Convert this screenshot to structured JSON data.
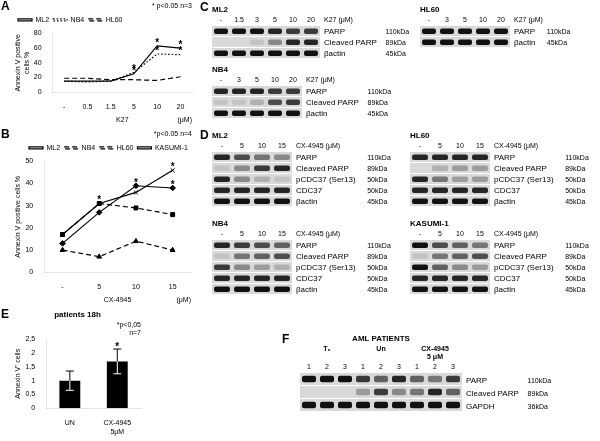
{
  "chart_data": [
    {
      "type": "line",
      "panel_label": "A",
      "annotation": "* p<0.05 n=3",
      "x_label": "K27",
      "x_unit": "(μM)",
      "y_label": "Annexin V positive cells %",
      "categories": [
        "-",
        "0.5",
        "1.5",
        "5",
        "10",
        "20"
      ],
      "ylim": [
        0,
        80
      ],
      "yticks": [
        0,
        20,
        40,
        60,
        80
      ],
      "grid": false,
      "legend": "top-left",
      "significance_mark": "*",
      "series": [
        {
          "name": "ML2",
          "color": "#000000",
          "line_style": "solid",
          "marker": "none",
          "values": [
            15,
            15,
            15,
            25,
            63,
            60
          ],
          "significant": [
            false,
            false,
            false,
            true,
            true,
            true
          ]
        },
        {
          "name": "NB4",
          "color": "#000000",
          "line_style": "dotted",
          "marker": "none",
          "values": [
            15,
            14,
            15,
            27,
            52,
            51
          ],
          "significant": [
            false,
            false,
            false,
            true,
            true,
            true
          ]
        },
        {
          "name": "HL60",
          "color": "#000000",
          "line_style": "dashed",
          "marker": "none",
          "values": [
            19,
            19,
            17,
            17,
            16,
            21
          ],
          "significant": [
            false,
            false,
            false,
            false,
            false,
            false
          ]
        }
      ]
    },
    {
      "type": "line",
      "panel_label": "B",
      "annotation": "*p<0.05 n=4",
      "x_label": "CX-4945",
      "x_unit": "(μM)",
      "y_label": "Annexin V positive cells %",
      "categories": [
        "-",
        "5",
        "10",
        "15"
      ],
      "ylim": [
        0,
        50
      ],
      "yticks": [
        0,
        10,
        20,
        30,
        40,
        50
      ],
      "grid": false,
      "legend": "top-right",
      "significance_mark": "*",
      "series": [
        {
          "name": "ML2",
          "color": "#000000",
          "line_style": "solid",
          "marker": "diamond",
          "values": [
            13,
            27,
            39,
            38
          ],
          "significant": [
            false,
            false,
            true,
            true
          ]
        },
        {
          "name": "NB4",
          "color": "#000000",
          "line_style": "dashed",
          "marker": "square",
          "values": [
            17,
            31,
            29,
            26
          ],
          "significant": [
            false,
            true,
            false,
            false
          ]
        },
        {
          "name": "HL60",
          "color": "#000000",
          "line_style": "dashed",
          "marker": "triangle",
          "values": [
            10,
            7,
            14,
            10
          ],
          "significant": [
            false,
            false,
            false,
            false
          ]
        },
        {
          "name": "KASUMI-1",
          "color": "#000000",
          "line_style": "solid",
          "marker": "x",
          "values": [
            17,
            31,
            36,
            46
          ],
          "significant": [
            false,
            false,
            true,
            true
          ]
        }
      ]
    },
    {
      "type": "bar",
      "panel_label": "E",
      "title": "patients 18h",
      "annotation": [
        "*p<0,05",
        "n=7"
      ],
      "y_label": "Annexin V⁺ cells",
      "categories": [
        "UN",
        [
          "CX-4945",
          "5μM"
        ]
      ],
      "values": [
        1.0,
        1.7
      ],
      "error": [
        0.35,
        0.45
      ],
      "significant": [
        false,
        true
      ],
      "significance_mark": "*",
      "color": "#000000",
      "grid": false,
      "ylim": [
        0,
        2.5
      ],
      "yticks": [
        0,
        {
          "value": 0.5,
          "label": "0,5"
        },
        1,
        {
          "value": 1.5,
          "label": "1,5"
        },
        2,
        {
          "value": 2.5,
          "label": "2,5"
        }
      ]
    }
  ],
  "blot_panels": [
    {
      "panel_label": "C",
      "blots": [
        {
          "cell_line": "ML2",
          "treatment": "K27 (μM)",
          "lanes": [
            "-",
            "1.5",
            "3",
            "5",
            "10",
            "20"
          ],
          "rows": [
            {
              "protein": "PARP",
              "size": "110kDa",
              "bands": [
                1,
                1,
                1,
                0.9,
                0.8,
                0.8
              ]
            },
            {
              "protein": "Cleaved PARP",
              "size": "89kDa",
              "bands": [
                0,
                0,
                0.1,
                0.4,
                0.9,
                0.9
              ]
            },
            {
              "protein": "βactin",
              "size": "45kDa",
              "bands": [
                1,
                1,
                1,
                1,
                1,
                1
              ]
            }
          ]
        },
        {
          "cell_line": "HL60",
          "treatment": "K27 (μM)",
          "lanes": [
            "-",
            "3",
            "5",
            "10",
            "20"
          ],
          "rows": [
            {
              "protein": "PARP",
              "size": "110kDa",
              "bands": [
                1,
                1,
                1,
                1,
                1
              ]
            },
            {
              "protein": "βactin",
              "size": "45kDa",
              "bands": [
                1,
                1,
                1,
                1,
                1
              ]
            }
          ]
        },
        {
          "cell_line": "NB4",
          "treatment": "K27 (μM)",
          "lanes": [
            "-",
            "3",
            "5",
            "10",
            "20"
          ],
          "rows": [
            {
              "protein": "PARP",
              "size": "110kDa",
              "bands": [
                0.9,
                0.9,
                0.9,
                0.8,
                0.8
              ]
            },
            {
              "protein": "Cleaved PARP",
              "size": "89kDa",
              "bands": [
                0.1,
                0.1,
                0.2,
                0.7,
                0.8
              ]
            },
            {
              "protein": "βactin",
              "size": "45kDa",
              "bands": [
                1,
                1,
                1,
                1,
                1
              ]
            }
          ]
        }
      ]
    },
    {
      "panel_label": "D",
      "blots": [
        {
          "cell_line": "ML2",
          "treatment": "CX-4945 (μM)",
          "lanes": [
            "-",
            "5",
            "10",
            "15"
          ],
          "rows": [
            {
              "protein": "PARP",
              "size": "110kDa",
              "bands": [
                0.9,
                0.7,
                0.5,
                0.4
              ]
            },
            {
              "protein": "Cleaved PARP",
              "size": "89kDa",
              "bands": [
                0.1,
                0.4,
                0.8,
                0.9
              ]
            },
            {
              "protein": "pCDC37 (Ser13)",
              "size": "50kDa",
              "bands": [
                0.9,
                0.4,
                0.2,
                0.1
              ]
            },
            {
              "protein": "CDC37",
              "size": "50kDa",
              "bands": [
                0.9,
                0.9,
                0.9,
                0.9
              ]
            },
            {
              "protein": "βactin",
              "size": "45kDa",
              "bands": [
                1,
                1,
                1,
                1
              ]
            }
          ]
        },
        {
          "cell_line": "HL60",
          "treatment": "CX-4945 (μM)",
          "lanes": [
            "-",
            "5",
            "10",
            "15"
          ],
          "rows": [
            {
              "protein": "PARP",
              "size": "110kDa",
              "bands": [
                0.9,
                0.9,
                0.9,
                0.9
              ]
            },
            {
              "protein": "Cleaved PARP",
              "size": "89kDa",
              "bands": [
                0,
                0.2,
                0.3,
                0.3
              ]
            },
            {
              "protein": "pCDC37 (Ser13)",
              "size": "50kDa",
              "bands": [
                0.9,
                0.5,
                0.3,
                0.3
              ]
            },
            {
              "protein": "CDC37",
              "size": "50kDa",
              "bands": [
                0.9,
                0.9,
                0.9,
                0.9
              ]
            },
            {
              "protein": "βactin",
              "size": "45kDa",
              "bands": [
                1,
                1,
                1,
                1
              ]
            }
          ]
        },
        {
          "cell_line": "NB4",
          "treatment": "CX-4945 (μM)",
          "lanes": [
            "-",
            "5",
            "10",
            "15"
          ],
          "rows": [
            {
              "protein": "PARP",
              "size": "110kDa",
              "bands": [
                0.9,
                0.8,
                0.7,
                0.6
              ]
            },
            {
              "protein": "Cleaved PARP",
              "size": "89kDa",
              "bands": [
                0.1,
                0.5,
                0.6,
                0.7
              ]
            },
            {
              "protein": "pCDC37 (Ser13)",
              "size": "50kDa",
              "bands": [
                0.8,
                0.4,
                0.3,
                0.2
              ]
            },
            {
              "protein": "CDC37",
              "size": "50kDa",
              "bands": [
                0.9,
                0.9,
                0.9,
                0.9
              ]
            },
            {
              "protein": "βactin",
              "size": "45kDa",
              "bands": [
                1,
                1,
                1,
                1
              ]
            }
          ]
        },
        {
          "cell_line": "KASUMI-1",
          "treatment": "CX-4945 (μM)",
          "lanes": [
            "-",
            "5",
            "10",
            "15"
          ],
          "rows": [
            {
              "protein": "PARP",
              "size": "110kDa",
              "bands": [
                1,
                0.7,
                0.6,
                0.5
              ]
            },
            {
              "protein": "Cleaved PARP",
              "size": "89kDa",
              "bands": [
                0.1,
                0.5,
                0.6,
                0.7
              ]
            },
            {
              "protein": "pCDC37 (Ser13)",
              "size": "50kDa",
              "bands": [
                1,
                0.6,
                0.4,
                0.3
              ]
            },
            {
              "protein": "CDC37",
              "size": "50kDa",
              "bands": [
                0.9,
                0.9,
                0.9,
                0.9
              ]
            },
            {
              "protein": "βactin",
              "size": "45kDa",
              "bands": [
                1,
                1,
                1,
                1
              ]
            }
          ]
        }
      ]
    },
    {
      "panel_label": "F",
      "blots": [
        {
          "title": "AML PATIENTS",
          "groups": [
            {
              "name": [
                "T₀"
              ],
              "lanes": [
                "1",
                "2",
                "3"
              ]
            },
            {
              "name": [
                "Un"
              ],
              "lanes": [
                "1",
                "2",
                "3"
              ]
            },
            {
              "name": [
                "CX-4945",
                "5 μM"
              ],
              "lanes": [
                "1",
                "2",
                "3"
              ]
            }
          ],
          "rows": [
            {
              "protein": "PARP",
              "size": "110kDa",
              "bands": [
                1,
                1,
                1,
                0.8,
                0.6,
                0.9,
                0.6,
                0.5,
                0.8
              ]
            },
            {
              "protein": "Cleaved PARP",
              "size": "89kDa",
              "bands": [
                0,
                0,
                0,
                0.3,
                0.8,
                0.4,
                0.5,
                0.9,
                0.6
              ]
            },
            {
              "protein": "GAPDH",
              "size": "36kDa",
              "bands": [
                1,
                1,
                1,
                1,
                1,
                1,
                1,
                1,
                1
              ]
            }
          ]
        }
      ]
    }
  ]
}
